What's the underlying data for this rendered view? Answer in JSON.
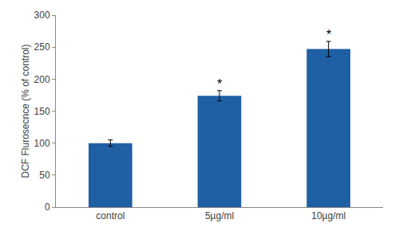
{
  "chart_data": {
    "type": "bar",
    "y_label": "DCF Flurosecnce (% of control)",
    "categories": [
      "control",
      "5µg/ml",
      "10µg/ml"
    ],
    "values": [
      100,
      174,
      247
    ],
    "errors": [
      5,
      8,
      12
    ],
    "color": "#1f5fa3",
    "ylim": [
      0,
      300
    ],
    "yticks": [
      0,
      50,
      100,
      150,
      200,
      250,
      300
    ],
    "grid": false,
    "annotations": [
      {
        "category": "5µg/ml",
        "text": "*"
      },
      {
        "category": "10µg/ml",
        "text": "*"
      }
    ]
  }
}
